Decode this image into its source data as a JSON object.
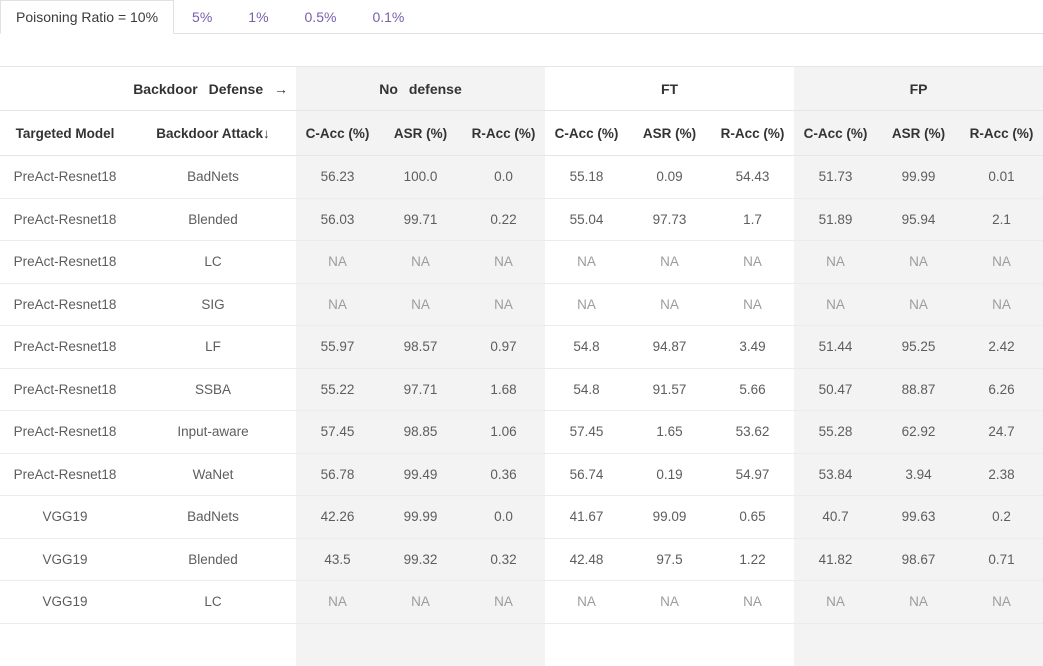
{
  "tabs": {
    "active": "Poisoning Ratio = 10%",
    "items": [
      "5%",
      "1%",
      "0.5%",
      "0.1%"
    ]
  },
  "table": {
    "corner_header": "Backdoor Defense →",
    "groups": [
      "No defense",
      "FT",
      "FP"
    ],
    "row_headers": [
      "Targeted Model",
      "Backdoor Attack↓"
    ],
    "metric_headers": [
      "C-Acc (%)",
      "ASR (%)",
      "R-Acc (%)"
    ],
    "rows": [
      {
        "model": "PreAct-Resnet18",
        "attack": "BadNets",
        "values": [
          "56.23",
          "100.0",
          "0.0",
          "55.18",
          "0.09",
          "54.43",
          "51.73",
          "99.99",
          "0.01"
        ]
      },
      {
        "model": "PreAct-Resnet18",
        "attack": "Blended",
        "values": [
          "56.03",
          "99.71",
          "0.22",
          "55.04",
          "97.73",
          "1.7",
          "51.89",
          "95.94",
          "2.1"
        ]
      },
      {
        "model": "PreAct-Resnet18",
        "attack": "LC",
        "values": [
          "NA",
          "NA",
          "NA",
          "NA",
          "NA",
          "NA",
          "NA",
          "NA",
          "NA"
        ]
      },
      {
        "model": "PreAct-Resnet18",
        "attack": "SIG",
        "values": [
          "NA",
          "NA",
          "NA",
          "NA",
          "NA",
          "NA",
          "NA",
          "NA",
          "NA"
        ]
      },
      {
        "model": "PreAct-Resnet18",
        "attack": "LF",
        "values": [
          "55.97",
          "98.57",
          "0.97",
          "54.8",
          "94.87",
          "3.49",
          "51.44",
          "95.25",
          "2.42"
        ]
      },
      {
        "model": "PreAct-Resnet18",
        "attack": "SSBA",
        "values": [
          "55.22",
          "97.71",
          "1.68",
          "54.8",
          "91.57",
          "5.66",
          "50.47",
          "88.87",
          "6.26"
        ]
      },
      {
        "model": "PreAct-Resnet18",
        "attack": "Input-aware",
        "values": [
          "57.45",
          "98.85",
          "1.06",
          "57.45",
          "1.65",
          "53.62",
          "55.28",
          "62.92",
          "24.7"
        ]
      },
      {
        "model": "PreAct-Resnet18",
        "attack": "WaNet",
        "values": [
          "56.78",
          "99.49",
          "0.36",
          "56.74",
          "0.19",
          "54.97",
          "53.84",
          "3.94",
          "2.38"
        ]
      },
      {
        "model": "VGG19",
        "attack": "BadNets",
        "values": [
          "42.26",
          "99.99",
          "0.0",
          "41.67",
          "99.09",
          "0.65",
          "40.7",
          "99.63",
          "0.2"
        ]
      },
      {
        "model": "VGG19",
        "attack": "Blended",
        "values": [
          "43.5",
          "99.32",
          "0.32",
          "42.48",
          "97.5",
          "1.22",
          "41.82",
          "98.67",
          "0.71"
        ]
      },
      {
        "model": "VGG19",
        "attack": "LC",
        "values": [
          "NA",
          "NA",
          "NA",
          "NA",
          "NA",
          "NA",
          "NA",
          "NA",
          "NA"
        ]
      }
    ]
  },
  "colors": {
    "accent_purple": "#7a5ea8",
    "group_shade": "#f3f3f3",
    "tab_border": "#dee2e6"
  }
}
